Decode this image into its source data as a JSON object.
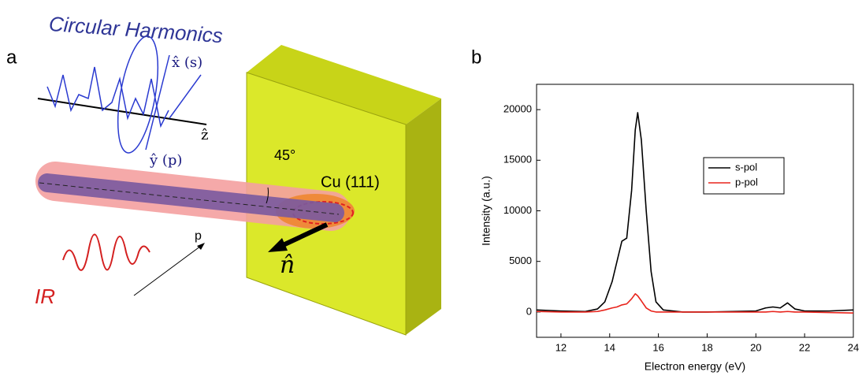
{
  "panel_labels": [
    "a",
    "b"
  ],
  "diagram": {
    "title": "Circular Harmonics",
    "x_axis": "x̂ (s)",
    "y_axis": "ŷ (p)",
    "z_axis": "ẑ",
    "angle": "45°",
    "sample": "Cu (111)",
    "normal": "n̂",
    "polarization": "p",
    "ir": "IR"
  },
  "chart_data": {
    "type": "line",
    "xlabel": "Electron energy (eV)",
    "ylabel": "Intensity (a.u.)",
    "xlim": [
      11,
      24
    ],
    "xticks": [
      12,
      14,
      16,
      18,
      20,
      22,
      24
    ],
    "ylim": [
      -2500,
      22500
    ],
    "yticks": [
      0,
      5000,
      10000,
      15000,
      20000
    ],
    "x": [
      11,
      12,
      13,
      13.5,
      13.8,
      14.1,
      14.3,
      14.5,
      14.7,
      14.9,
      15.05,
      15.15,
      15.3,
      15.5,
      15.7,
      15.9,
      16.2,
      17,
      18,
      19,
      20,
      20.4,
      20.7,
      21,
      21.3,
      21.6,
      22,
      23,
      24
    ],
    "series": [
      {
        "name": "s-pol",
        "color": "#000000",
        "values": [
          200,
          100,
          50,
          300,
          1000,
          3000,
          5000,
          7000,
          7300,
          12000,
          18000,
          19700,
          17000,
          10000,
          4000,
          1000,
          200,
          0,
          0,
          50,
          100,
          400,
          500,
          400,
          900,
          300,
          100,
          100,
          200
        ]
      },
      {
        "name": "p-pol",
        "color": "#e8231b",
        "values": [
          50,
          0,
          0,
          50,
          200,
          400,
          500,
          700,
          800,
          1300,
          1800,
          1600,
          1100,
          400,
          100,
          0,
          0,
          0,
          0,
          0,
          0,
          0,
          50,
          0,
          50,
          0,
          0,
          -50,
          -100
        ]
      }
    ],
    "legend": "upper-right"
  }
}
